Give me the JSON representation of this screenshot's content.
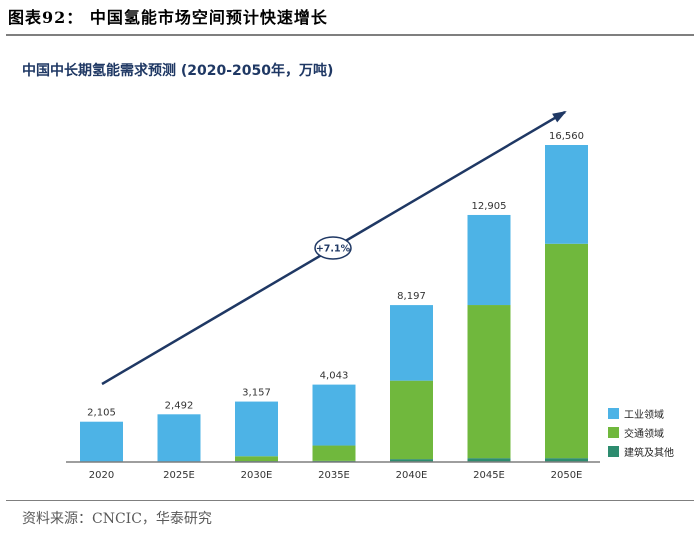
{
  "figure_title": "图表92： 中国氢能市场空间预计快速增长",
  "source": "资料来源：CNCIC，华泰研究",
  "growth_label": "+7.1%",
  "colors": {
    "industry": "#4db3e6",
    "transport": "#70b83d",
    "building": "#2d8c6f",
    "axis": "#7f7f7f",
    "arrow": "#1f3864"
  },
  "chart_data": {
    "type": "bar",
    "stacked": true,
    "title": "中国中长期氢能需求预测 (2020-2050年，万吨)",
    "categories": [
      "2020",
      "2025E",
      "2030E",
      "2035E",
      "2040E",
      "2045E",
      "2050E"
    ],
    "totals": [
      "2,105",
      "2,492",
      "3,157",
      "4,043",
      "8,197",
      "12,905",
      "16,560"
    ],
    "ylim": [
      0,
      17500
    ],
    "legend_position": "right",
    "series": [
      {
        "name": "建筑及其他",
        "color": "#2d8c6f",
        "values": [
          0,
          0,
          50,
          60,
          150,
          200,
          200
        ]
      },
      {
        "name": "交通领域",
        "color": "#70b83d",
        "values": [
          0,
          0,
          250,
          800,
          4100,
          8000,
          11200
        ]
      },
      {
        "name": "工业领域",
        "color": "#4db3e6",
        "values": [
          2105,
          2492,
          2857,
          3183,
          3947,
          4705,
          5160
        ]
      }
    ],
    "legend": [
      "工业领域",
      "交通领域",
      "建筑及其他"
    ]
  }
}
